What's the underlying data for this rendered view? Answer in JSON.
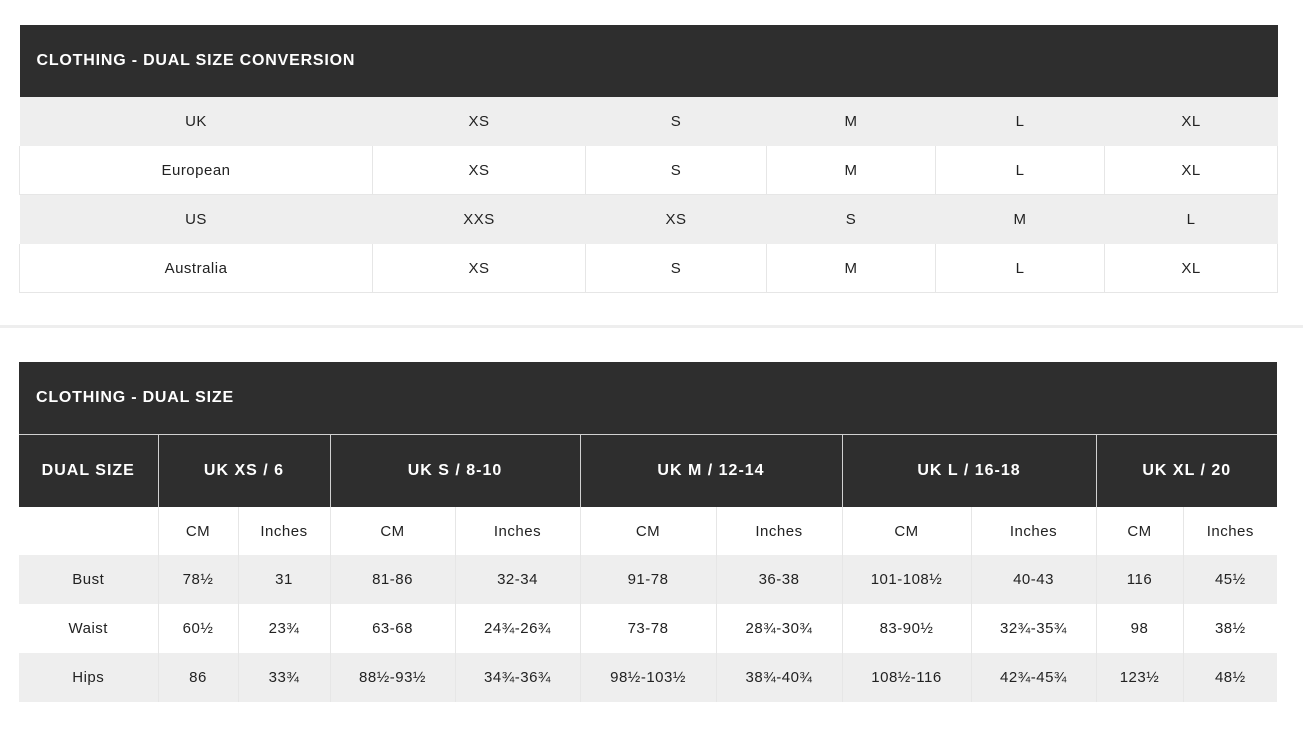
{
  "conversion": {
    "title": "CLOTHING - DUAL SIZE CONVERSION",
    "rows": [
      {
        "label": "UK",
        "values": [
          "XS",
          "S",
          "M",
          "L",
          "XL"
        ]
      },
      {
        "label": "European",
        "values": [
          "XS",
          "S",
          "M",
          "L",
          "XL"
        ]
      },
      {
        "label": "US",
        "values": [
          "XXS",
          "XS",
          "S",
          "M",
          "L"
        ]
      },
      {
        "label": "Australia",
        "values": [
          "XS",
          "S",
          "M",
          "L",
          "XL"
        ]
      }
    ]
  },
  "dual": {
    "title": "CLOTHING - DUAL SIZE",
    "header_label": "DUAL SIZE",
    "sizes": [
      "UK XS / 6",
      "UK S / 8-10",
      "UK M / 12-14",
      "UK L / 16-18",
      "UK XL / 20"
    ],
    "units": [
      "CM",
      "Inches",
      "CM",
      "Inches",
      "CM",
      "Inches",
      "CM",
      "Inches",
      "CM",
      "Inches"
    ],
    "rows": [
      {
        "label": "Bust",
        "values": [
          "78½",
          "31",
          "81-86",
          "32-34",
          "91-78",
          "36-38",
          "101-108½",
          "40-43",
          "116",
          "45½"
        ]
      },
      {
        "label": "Waist",
        "values": [
          "60½",
          "23¾",
          "63-68",
          "24¾-26¾",
          "73-78",
          "28¾-30¾",
          "83-90½",
          "32¾-35¾",
          "98",
          "38½"
        ]
      },
      {
        "label": "Hips",
        "values": [
          "86",
          "33¾",
          "88½-93½",
          "34¾-36¾",
          "98½-103½",
          "38¾-40¾",
          "108½-116",
          "42¾-45¾",
          "123½",
          "48½"
        ]
      }
    ]
  }
}
